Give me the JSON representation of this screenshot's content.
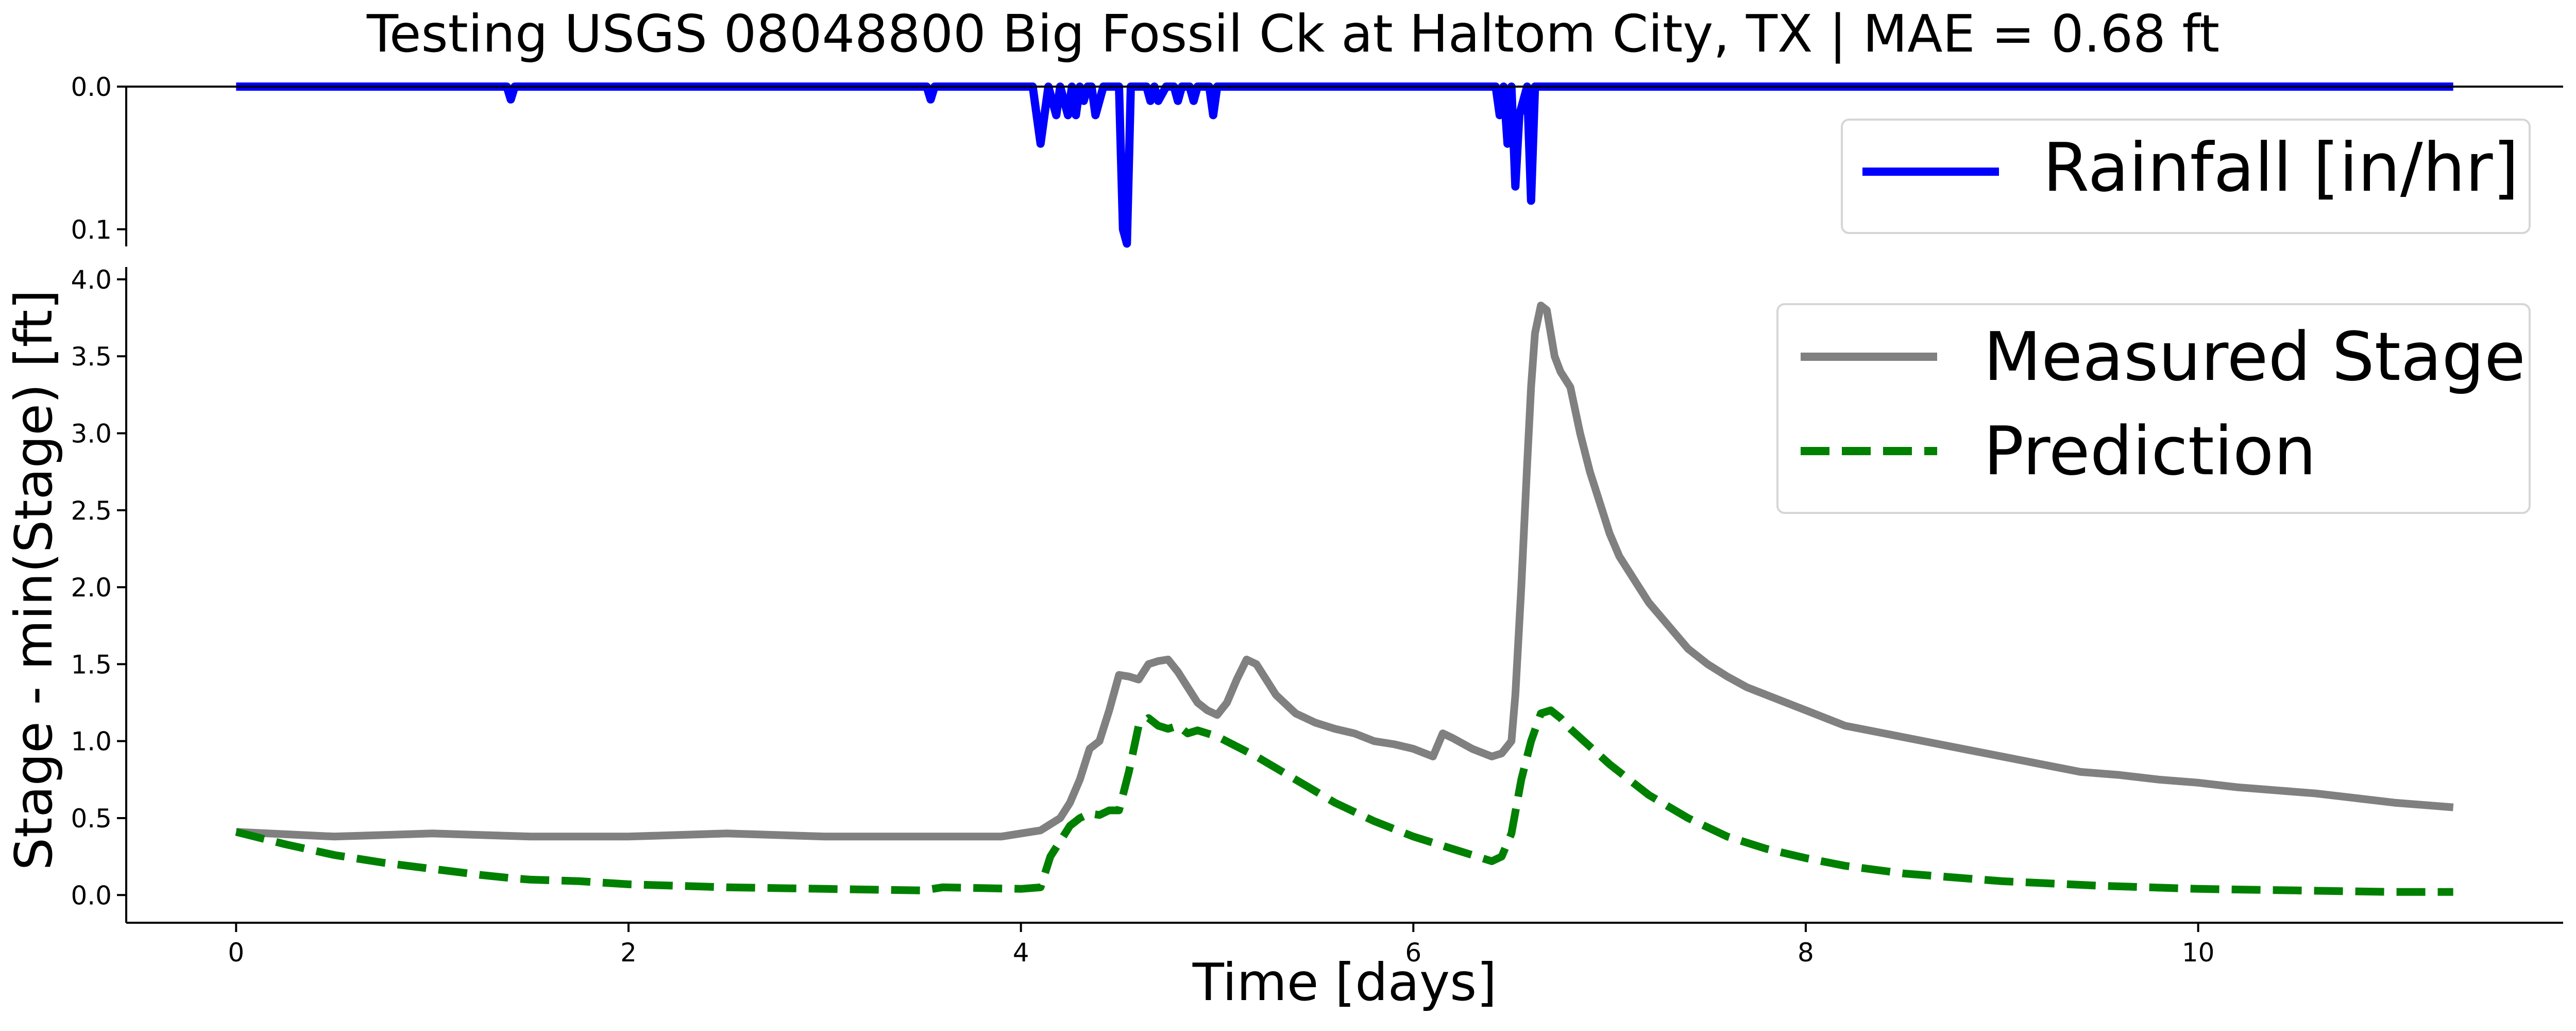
{
  "title": "Testing USGS 08048800 Big Fossil Ck at Haltom City, TX | MAE = 0.68 ft",
  "chart_data": [
    {
      "panel": "rainfall",
      "type": "line",
      "ylim": [
        0.112,
        0.0
      ],
      "y_inverted": true,
      "yticks": [
        0.0,
        0.1
      ],
      "ytick_labels": [
        "0.0",
        "0.1"
      ],
      "legend_placement": "top-right",
      "series": [
        {
          "name": "Rainfall [in/hr]",
          "color": "#0000ff",
          "style": "solid",
          "x": [
            0,
            1.38,
            1.4,
            1.42,
            3.52,
            3.54,
            3.56,
            4.06,
            4.1,
            4.14,
            4.18,
            4.2,
            4.22,
            4.24,
            4.26,
            4.28,
            4.3,
            4.32,
            4.34,
            4.36,
            4.38,
            4.42,
            4.44,
            4.46,
            4.5,
            4.52,
            4.54,
            4.56,
            4.58,
            4.6,
            4.64,
            4.66,
            4.68,
            4.7,
            4.74,
            4.76,
            4.78,
            4.8,
            4.82,
            4.86,
            4.88,
            4.9,
            4.92,
            4.94,
            4.96,
            4.98,
            5.0,
            5.02,
            6.42,
            6.44,
            6.46,
            6.48,
            6.5,
            6.52,
            6.54,
            6.56,
            6.58,
            6.6,
            6.62,
            6.64,
            6.66,
            11.3
          ],
          "values": [
            0,
            0,
            0.009,
            0,
            0,
            0.009,
            0,
            0,
            0.04,
            0,
            0.02,
            0,
            0.01,
            0.02,
            0,
            0.02,
            0,
            0.01,
            0,
            0,
            0.02,
            0,
            0,
            0,
            0,
            0.1,
            0.11,
            0,
            0,
            0,
            0,
            0.01,
            0,
            0.01,
            0,
            0,
            0,
            0.01,
            0,
            0,
            0.01,
            0,
            0,
            0,
            0,
            0.02,
            0,
            0,
            0,
            0.02,
            0,
            0.04,
            0,
            0.07,
            0.02,
            0.01,
            0,
            0.08,
            0,
            0,
            0,
            0
          ]
        }
      ]
    },
    {
      "panel": "stage",
      "type": "line",
      "xlabel": "Time [days]",
      "ylabel": "Stage - min(Stage) [ft]",
      "xlim": [
        -0.56,
        11.86
      ],
      "ylim": [
        -0.18,
        4.08
      ],
      "xticks": [
        0,
        2,
        4,
        6,
        8,
        10
      ],
      "xtick_labels": [
        "0",
        "2",
        "4",
        "6",
        "8",
        "10"
      ],
      "yticks": [
        0.0,
        0.5,
        1.0,
        1.5,
        2.0,
        2.5,
        3.0,
        3.5,
        4.0
      ],
      "ytick_labels": [
        "0.0",
        "0.5",
        "1.0",
        "1.5",
        "2.0",
        "2.5",
        "3.0",
        "3.5",
        "4.0"
      ],
      "grid": false,
      "legend_placement": "top-right",
      "series": [
        {
          "name": "Measured Stage",
          "color": "#808080",
          "style": "solid",
          "x": [
            0,
            0.5,
            1,
            1.5,
            2,
            2.5,
            3,
            3.5,
            3.9,
            4.0,
            4.1,
            4.2,
            4.25,
            4.3,
            4.35,
            4.4,
            4.45,
            4.5,
            4.55,
            4.6,
            4.65,
            4.7,
            4.75,
            4.8,
            4.85,
            4.9,
            4.95,
            5.0,
            5.05,
            5.1,
            5.15,
            5.2,
            5.3,
            5.4,
            5.5,
            5.6,
            5.7,
            5.8,
            5.9,
            6.0,
            6.1,
            6.15,
            6.2,
            6.3,
            6.4,
            6.45,
            6.5,
            6.52,
            6.55,
            6.58,
            6.6,
            6.62,
            6.65,
            6.68,
            6.7,
            6.72,
            6.75,
            6.8,
            6.85,
            6.9,
            6.95,
            7.0,
            7.05,
            7.1,
            7.2,
            7.3,
            7.4,
            7.5,
            7.6,
            7.7,
            7.8,
            7.9,
            8.0,
            8.2,
            8.4,
            8.6,
            8.8,
            9.0,
            9.2,
            9.4,
            9.6,
            9.8,
            10.0,
            10.2,
            10.4,
            10.6,
            10.8,
            11.0,
            11.3
          ],
          "values": [
            0.41,
            0.38,
            0.4,
            0.38,
            0.38,
            0.4,
            0.38,
            0.38,
            0.38,
            0.4,
            0.42,
            0.5,
            0.6,
            0.75,
            0.95,
            1.0,
            1.2,
            1.43,
            1.42,
            1.4,
            1.5,
            1.52,
            1.53,
            1.45,
            1.35,
            1.25,
            1.2,
            1.17,
            1.25,
            1.4,
            1.53,
            1.5,
            1.3,
            1.18,
            1.12,
            1.08,
            1.05,
            1.0,
            0.98,
            0.95,
            0.9,
            1.05,
            1.02,
            0.95,
            0.9,
            0.92,
            1.0,
            1.3,
            2.0,
            2.8,
            3.3,
            3.65,
            3.83,
            3.8,
            3.65,
            3.5,
            3.4,
            3.3,
            3.0,
            2.75,
            2.55,
            2.35,
            2.2,
            2.1,
            1.9,
            1.75,
            1.6,
            1.5,
            1.42,
            1.35,
            1.3,
            1.25,
            1.2,
            1.1,
            1.05,
            1.0,
            0.95,
            0.9,
            0.85,
            0.8,
            0.78,
            0.75,
            0.73,
            0.7,
            0.68,
            0.66,
            0.63,
            0.6,
            0.57
          ]
        },
        {
          "name": "Prediction",
          "color": "#008000",
          "style": "dashed",
          "x": [
            0,
            0.25,
            0.5,
            0.75,
            1.0,
            1.25,
            1.4,
            1.5,
            1.75,
            2.0,
            2.5,
            3.0,
            3.5,
            3.55,
            3.6,
            4.0,
            4.1,
            4.15,
            4.2,
            4.25,
            4.3,
            4.35,
            4.4,
            4.45,
            4.5,
            4.55,
            4.6,
            4.65,
            4.7,
            4.75,
            4.8,
            4.85,
            4.9,
            4.95,
            5.0,
            5.2,
            5.4,
            5.6,
            5.8,
            6.0,
            6.2,
            6.4,
            6.45,
            6.5,
            6.55,
            6.6,
            6.65,
            6.7,
            6.75,
            6.8,
            7.0,
            7.2,
            7.4,
            7.6,
            7.8,
            8.0,
            8.2,
            8.5,
            9.0,
            9.5,
            10.0,
            10.5,
            11.0,
            11.3
          ],
          "values": [
            0.41,
            0.33,
            0.26,
            0.21,
            0.17,
            0.13,
            0.11,
            0.1,
            0.09,
            0.07,
            0.05,
            0.04,
            0.03,
            0.04,
            0.05,
            0.04,
            0.05,
            0.25,
            0.35,
            0.45,
            0.5,
            0.53,
            0.52,
            0.55,
            0.55,
            0.8,
            1.1,
            1.15,
            1.1,
            1.08,
            1.1,
            1.05,
            1.07,
            1.05,
            1.03,
            0.9,
            0.75,
            0.6,
            0.48,
            0.38,
            0.3,
            0.22,
            0.25,
            0.4,
            0.75,
            1.0,
            1.18,
            1.2,
            1.15,
            1.08,
            0.85,
            0.65,
            0.5,
            0.38,
            0.3,
            0.24,
            0.19,
            0.14,
            0.09,
            0.06,
            0.04,
            0.03,
            0.02,
            0.02
          ]
        }
      ]
    }
  ]
}
